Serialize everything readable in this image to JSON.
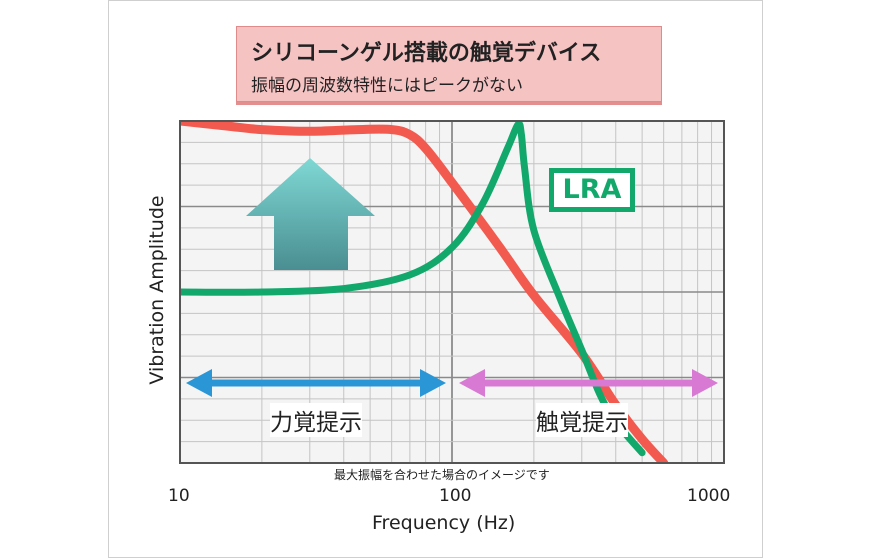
{
  "callout": {
    "title": "シリコーンゲル搭載の触覚デバイス",
    "subtitle": "振幅の周波数特性にはピークがない"
  },
  "labels": {
    "lra": "LRA",
    "force_region": "力覚提示",
    "tactile_region": "触覚提示",
    "note": "最大振幅を合わせた場合のイメージです"
  },
  "colors": {
    "silicone_gel_curve": "#f25a4f",
    "lra_curve": "#12a86b",
    "force_arrow": "#2b96d6",
    "tactile_arrow": "#d87ad4",
    "up_arrow_top": "#7fd8d4",
    "up_arrow_bottom": "#4a8e92",
    "callout_bg": "#f6c3c3"
  },
  "chart_data": {
    "type": "line",
    "x_scale": "log",
    "xlim": [
      10,
      1000
    ],
    "xticks": [
      "10",
      "100",
      "1000"
    ],
    "xlabel": "Frequency (Hz)",
    "ylabel": "Vibration Amplitude",
    "grid": true,
    "series": [
      {
        "key": "silicone_gel",
        "x": [
          10,
          15,
          20,
          30,
          45,
          60,
          70,
          80,
          100,
          150,
          200,
          300,
          400,
          500,
          600
        ],
        "y": [
          1.0,
          0.985,
          0.975,
          0.97,
          0.975,
          0.975,
          0.96,
          0.92,
          0.82,
          0.63,
          0.49,
          0.32,
          0.17,
          0.07,
          0.0
        ]
      },
      {
        "name": "LRA",
        "x": [
          10,
          20,
          40,
          70,
          100,
          130,
          160,
          175,
          180,
          185,
          200,
          250,
          300,
          350,
          400,
          500
        ],
        "y": [
          0.5,
          0.5,
          0.51,
          0.55,
          0.63,
          0.76,
          0.92,
          0.99,
          0.96,
          0.86,
          0.68,
          0.48,
          0.33,
          0.2,
          0.12,
          0.03
        ]
      }
    ],
    "annotations": [
      {
        "text": "力覚提示",
        "x_range": [
          10,
          100
        ]
      },
      {
        "text": "触覚提示",
        "x_range": [
          100,
          1000
        ]
      }
    ]
  }
}
